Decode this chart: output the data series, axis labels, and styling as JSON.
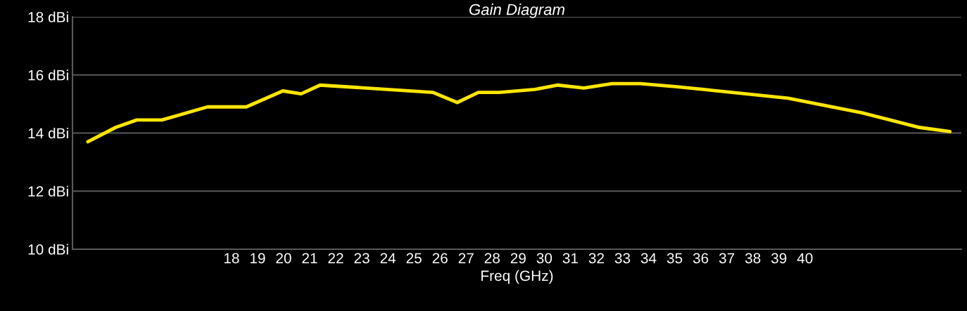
{
  "chart_data": {
    "type": "line",
    "title": "Gain Diagram",
    "xlabel": "Freq (GHz)",
    "x": [
      12.49,
      13.57,
      14.37,
      15.33,
      17.08,
      18.57,
      19.97,
      20.67,
      21.4,
      25.72,
      26.66,
      27.47,
      28.28,
      29.63,
      30.52,
      31.52,
      32.6,
      33.68,
      35.03,
      36.11,
      39.35,
      42.18,
      44.34,
      45.56
    ],
    "series": [
      {
        "color": "#ffe600",
        "values": [
          13.7,
          14.2,
          14.45,
          14.45,
          14.9,
          14.9,
          15.45,
          15.35,
          15.65,
          15.4,
          15.05,
          15.4,
          15.4,
          15.5,
          15.65,
          15.55,
          15.7,
          15.7,
          15.6,
          15.5,
          15.2,
          14.7,
          14.2,
          14.05
        ]
      }
    ],
    "xlim": [
      11.9,
      46.0
    ],
    "xticks": [
      18,
      19,
      20,
      21,
      22,
      23,
      24,
      25,
      26,
      27,
      28,
      29,
      30,
      31,
      32,
      33,
      34,
      35,
      36,
      37,
      38,
      39,
      40
    ],
    "ylim": [
      10,
      18
    ],
    "yticks": [
      {
        "value": 10,
        "label": "10 dBi"
      },
      {
        "value": 12,
        "label": "12 dBi"
      },
      {
        "value": 14,
        "label": "14 dBi"
      },
      {
        "value": 16,
        "label": "16 dBi"
      },
      {
        "value": 18,
        "label": "18 dBi"
      }
    ],
    "grid": "y",
    "marker": "none",
    "line_style": "solid"
  }
}
